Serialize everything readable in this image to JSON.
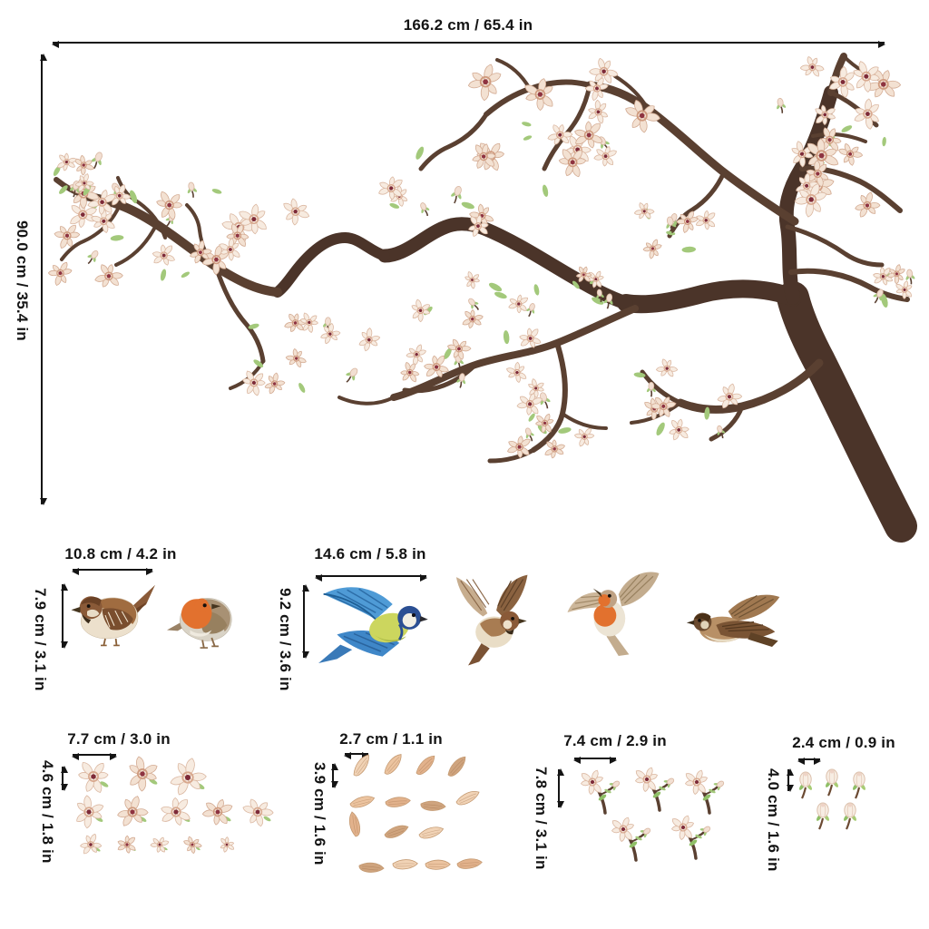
{
  "product": {
    "type": "wall decal size chart",
    "background": "#ffffff"
  },
  "main_decal": {
    "name": "blossom branch decal",
    "width_label": "166.2 cm / 65.4 in",
    "height_label": "90.0 cm / 35.4 in"
  },
  "bird_groups": [
    {
      "width_label": "10.8 cm / 4.2 in",
      "height_label": "7.9 cm / 3.1 in",
      "birds": [
        {
          "name": "perched sparrow"
        },
        {
          "name": "perched robin"
        }
      ]
    },
    {
      "width_label": "14.6 cm / 5.8 in",
      "height_label": "9.2 cm / 3.6 in",
      "birds": [
        {
          "name": "flying blue tit"
        },
        {
          "name": "flying sparrow"
        },
        {
          "name": "flying robin"
        },
        {
          "name": "gliding sparrow"
        }
      ]
    }
  ],
  "sticker_groups": [
    {
      "name": "blossom flowers",
      "width_label": "7.7 cm / 3.0 in",
      "height_label": "4.6 cm / 1.8 in",
      "rows": [
        3,
        5,
        5
      ]
    },
    {
      "name": "petals",
      "width_label": "2.7 cm / 1.1 in",
      "height_label": "3.9 cm / 1.6 in",
      "rows": [
        4,
        4,
        3,
        4
      ]
    },
    {
      "name": "flower sprigs",
      "width_label": "7.4 cm / 2.9 in",
      "height_label": "7.8 cm / 3.1 in",
      "rows": [
        3,
        2
      ]
    },
    {
      "name": "flower buds",
      "width_label": "2.4 cm / 0.9 in",
      "height_label": "4.0 cm / 1.6 in",
      "rows": [
        3,
        2
      ]
    }
  ],
  "colors": {
    "bark": "#4b3429",
    "twig": "#5a4031",
    "petal": "#f7ebe0",
    "petal_shade": "#f3e1d2",
    "flower_center": "#7d2a38",
    "leaf": "#a3c97b",
    "arrow": "#141414",
    "robin_orange": "#e2712e",
    "sparrow_brown": "#8a5a38",
    "blue_tit_blue": "#3f87c8"
  }
}
